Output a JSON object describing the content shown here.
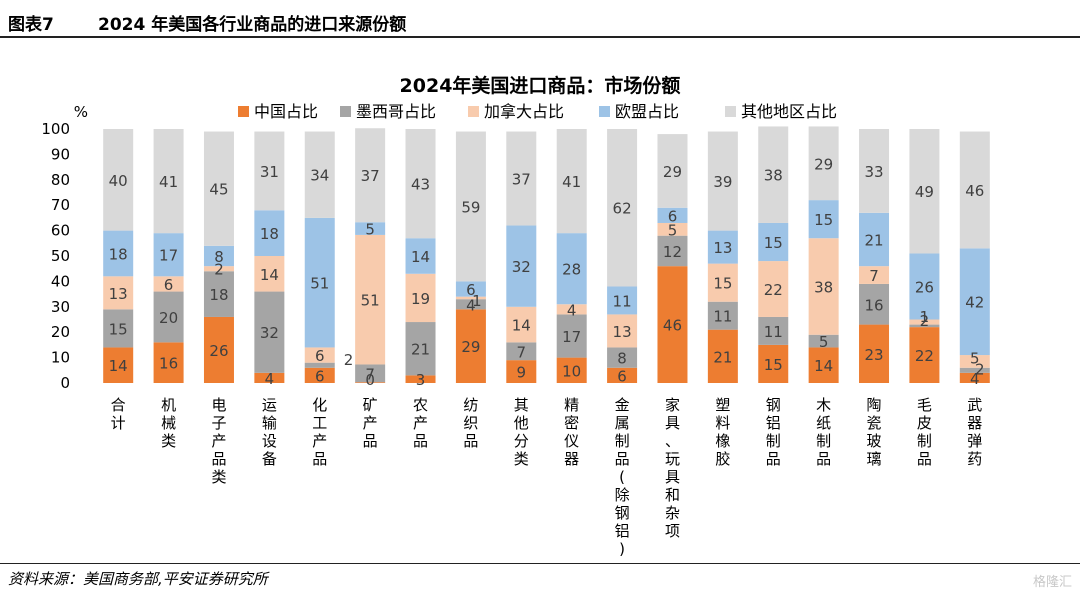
{
  "header": {
    "figure_label": "图表7",
    "figure_title": "2024 年美国各行业商品的进口来源份额"
  },
  "footer": {
    "source": "资料来源：美国商务部,平安证券研究所",
    "watermark": "格隆汇"
  },
  "chart_data": {
    "type": "bar",
    "stacked": true,
    "title": "2024年美国进口商品：市场份额",
    "ylabel": "%",
    "ylim": [
      0,
      100
    ],
    "yticks": [
      0,
      10,
      20,
      30,
      40,
      50,
      60,
      70,
      80,
      90,
      100
    ],
    "grid": false,
    "legend": "top",
    "categories": [
      "合计",
      "机械类",
      "电子产品类",
      "运输设备",
      "化工产品",
      "矿产品",
      "农产品",
      "纺织品",
      "其他分类",
      "精密仪器",
      "金属制品(除钢铝)",
      "家具、玩具和杂项",
      "塑料橡胶",
      "钢铝制品",
      "木纸制品",
      "陶瓷玻璃",
      "毛皮制品",
      "武器弹药"
    ],
    "series": [
      {
        "name": "中国占比",
        "color": "#ED7D31",
        "labels": [
          "14",
          "16",
          "26",
          "4",
          "6",
          "0",
          "3",
          "29",
          "9",
          "10",
          "6",
          "46",
          "21",
          "15",
          "14",
          "23",
          "22",
          "4"
        ],
        "values": [
          14,
          16,
          26,
          4,
          6,
          0.3,
          3,
          29,
          9,
          10,
          6,
          46,
          21,
          15,
          14,
          23,
          22,
          4
        ]
      },
      {
        "name": "墨西哥占比",
        "color": "#A5A5A5",
        "labels": [
          "15",
          "20",
          "18",
          "32",
          "2",
          "7",
          "21",
          "4",
          "7",
          "17",
          "8",
          "12",
          "11",
          "11",
          "5",
          "16",
          "1",
          "2"
        ],
        "values": [
          15,
          20,
          18,
          32,
          2,
          7,
          21,
          4,
          7,
          17,
          8,
          12,
          11,
          11,
          5,
          16,
          1,
          2
        ]
      },
      {
        "name": "加拿大占比",
        "color": "#F8CBAD",
        "labels": [
          "13",
          "6",
          "2",
          "14",
          "6",
          "51",
          "19",
          "1",
          "14",
          "4",
          "13",
          "5",
          "15",
          "22",
          "38",
          "7",
          "2",
          "5"
        ],
        "values": [
          13,
          6,
          2,
          14,
          6,
          51,
          19,
          1,
          14,
          4,
          13,
          5,
          15,
          22,
          38,
          7,
          2,
          5
        ]
      },
      {
        "name": "欧盟占比",
        "color": "#9DC3E6",
        "labels": [
          "18",
          "17",
          "8",
          "18",
          "51",
          "5",
          "14",
          "6",
          "32",
          "28",
          "11",
          "6",
          "13",
          "15",
          "15",
          "21",
          "26",
          "42"
        ],
        "values": [
          18,
          17,
          8,
          18,
          51,
          5,
          14,
          6,
          32,
          28,
          11,
          6,
          13,
          15,
          15,
          21,
          26,
          42
        ]
      },
      {
        "name": "其他地区占比",
        "color": "#D9D9D9",
        "labels": [
          "40",
          "41",
          "45",
          "31",
          "34",
          "37",
          "43",
          "59",
          "37",
          "41",
          "62",
          "29",
          "39",
          "38",
          "29",
          "33",
          "49",
          "46"
        ],
        "values": [
          40,
          41,
          45,
          31,
          34,
          37,
          43,
          59,
          37,
          41,
          62,
          29,
          39,
          38,
          29,
          33,
          49,
          46
        ]
      }
    ]
  }
}
